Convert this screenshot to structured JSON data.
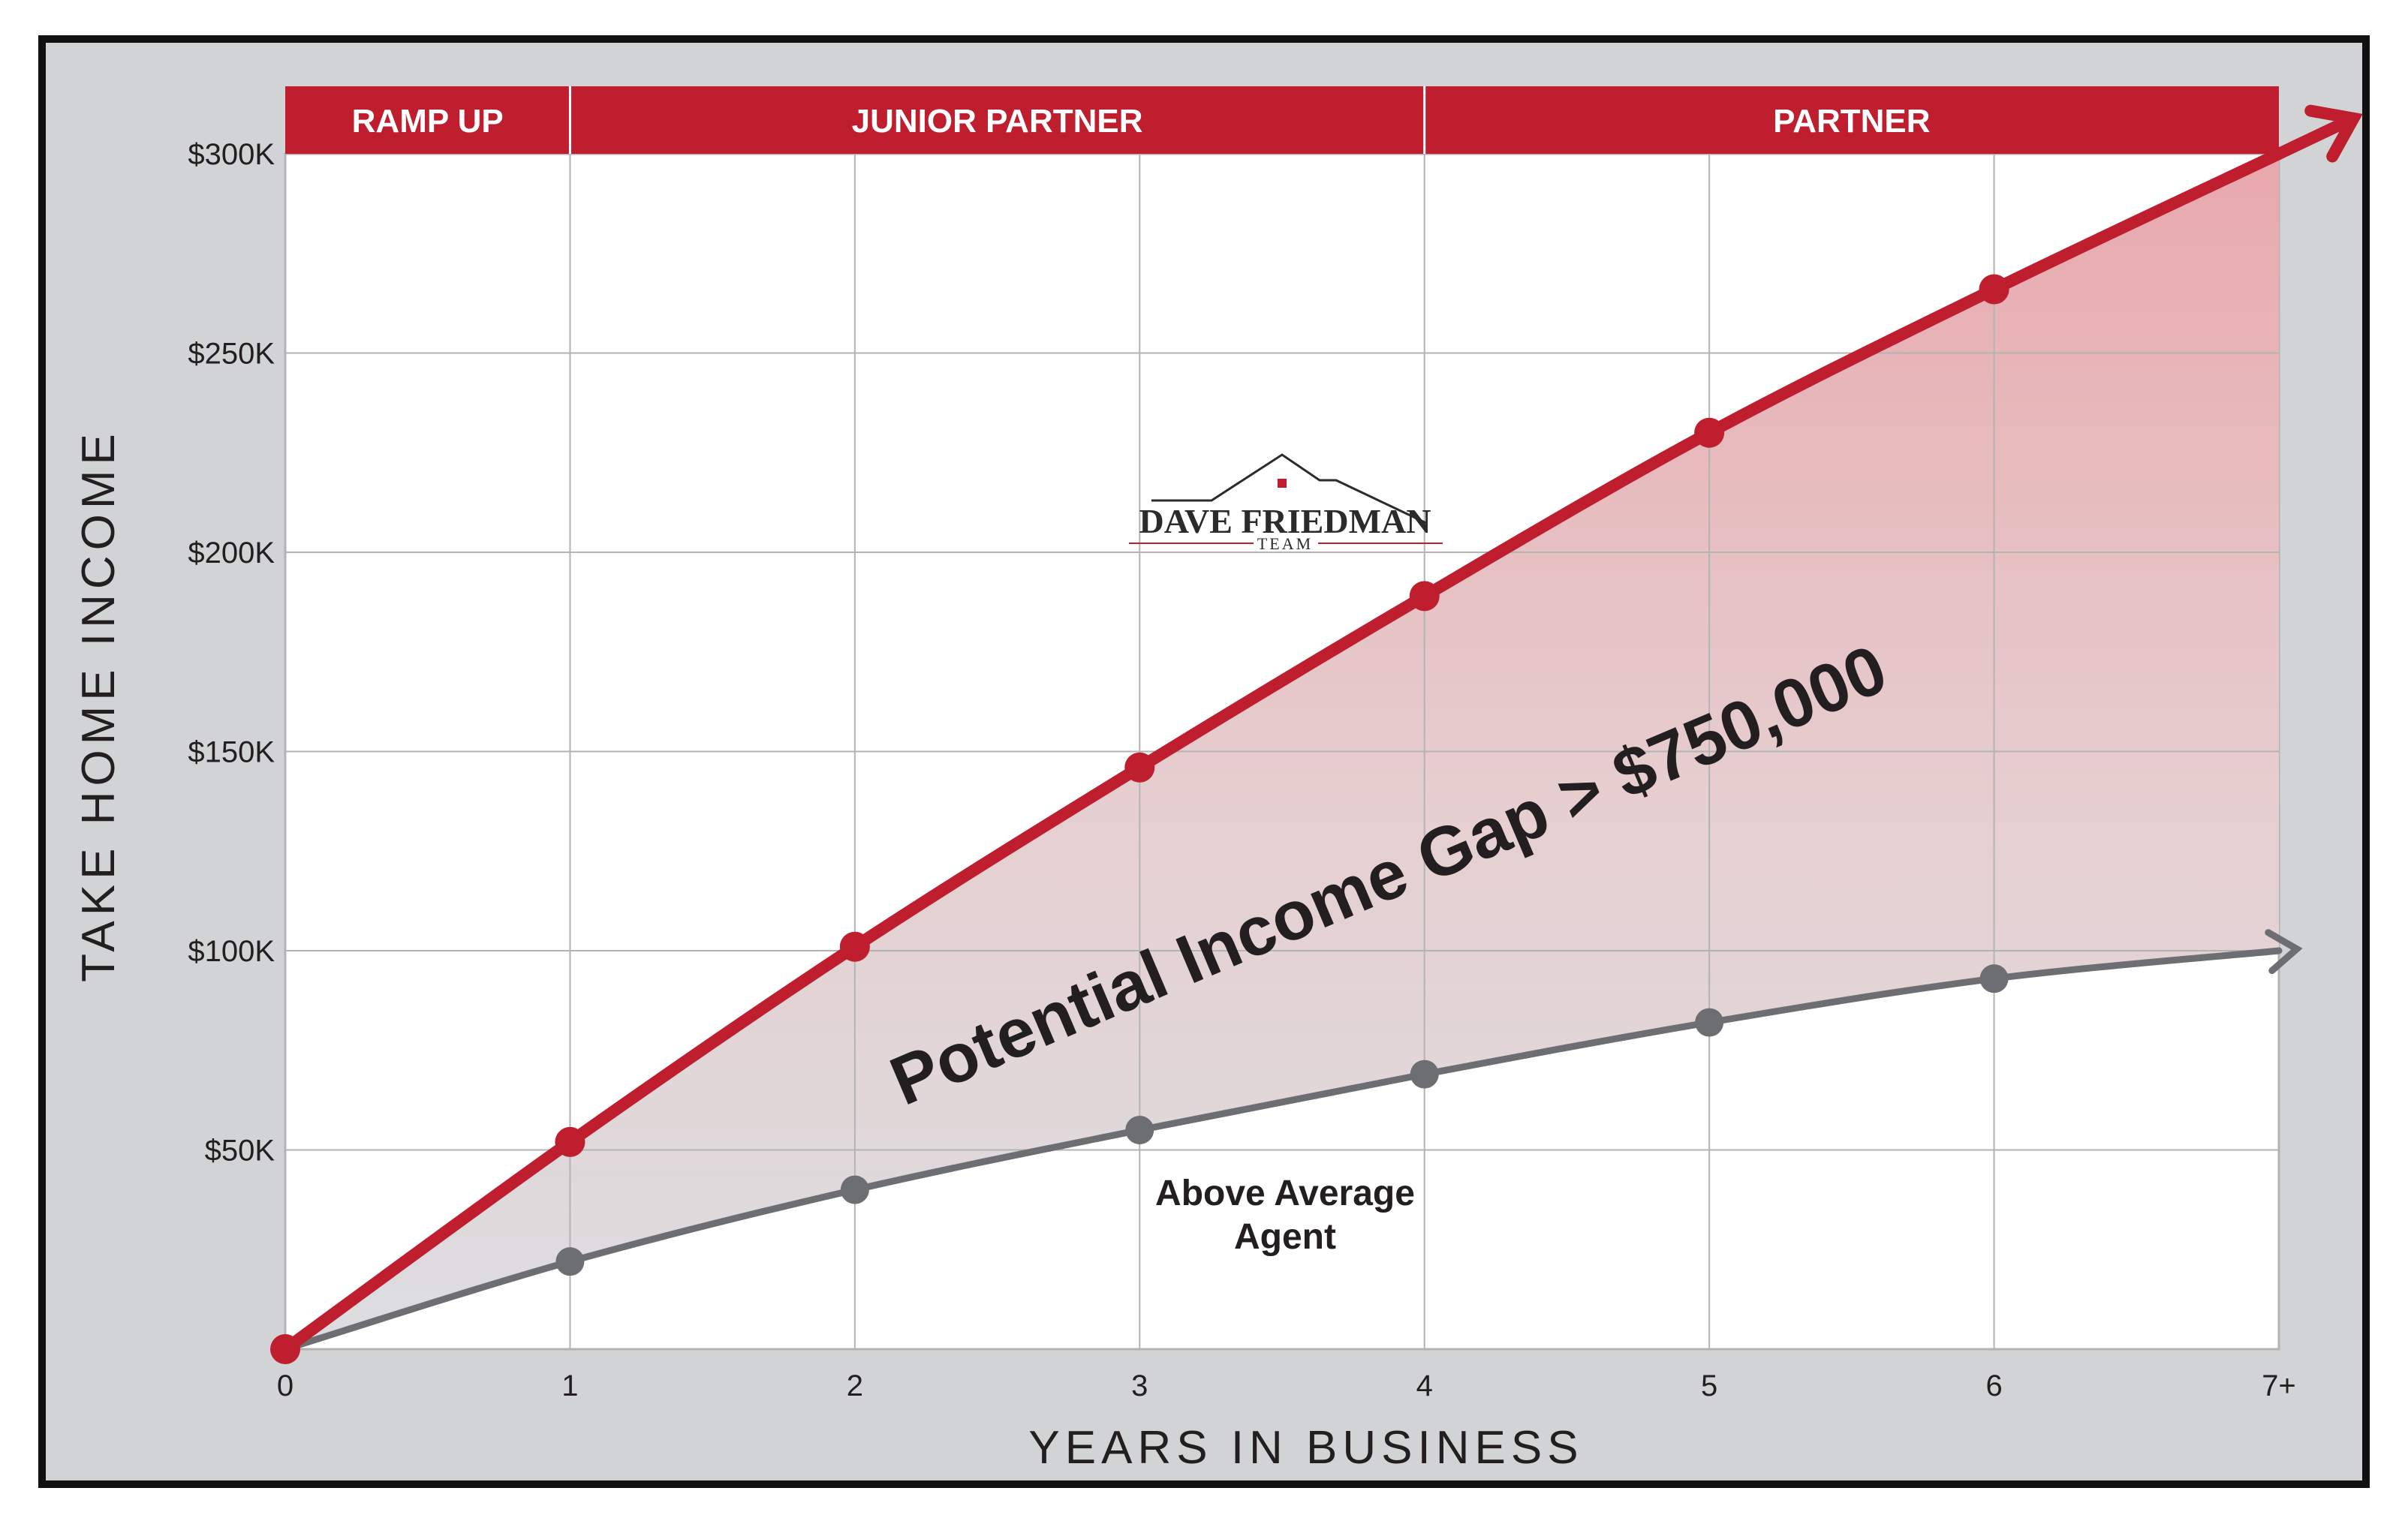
{
  "chart_data": {
    "type": "line",
    "xlabel": "YEARS IN BUSINESS",
    "ylabel": "TAKE HOME INCOME",
    "x_tick_labels": [
      "0",
      "1",
      "2",
      "3",
      "4",
      "5",
      "6",
      "7+"
    ],
    "y_tick_labels": [
      "$50K",
      "$100K",
      "$150K",
      "$200K",
      "$250K",
      "$300K"
    ],
    "y_ticks": [
      50000,
      100000,
      150000,
      200000,
      250000,
      300000
    ],
    "xlim": [
      0,
      7
    ],
    "ylim": [
      0,
      300000
    ],
    "grid": true,
    "phases": [
      {
        "label": "RAMP UP",
        "from": 0,
        "to": 1
      },
      {
        "label": "JUNIOR PARTNER",
        "from": 1,
        "to": 4
      },
      {
        "label": "PARTNER",
        "from": 4,
        "to": 7
      }
    ],
    "series": [
      {
        "x": [
          0,
          1,
          2,
          3,
          4,
          5,
          6
        ],
        "values": [
          0,
          52000,
          101000,
          146000,
          189000,
          230000,
          266000
        ],
        "end_value": 300000,
        "color": "#be1e2d"
      },
      {
        "x": [
          0,
          1,
          2,
          3,
          4,
          5,
          6
        ],
        "values": [
          0,
          22000,
          40000,
          55000,
          69000,
          82000,
          93000
        ],
        "end_value": 100000,
        "color": "#6d6e71"
      }
    ],
    "annotations": {
      "gap": "Potential Income Gap > $750,000",
      "agent_line1": "Above Average",
      "agent_line2": "Agent"
    }
  },
  "logo": {
    "name": "DAVE FRIEDMAN",
    "sub": "TEAM"
  },
  "colors": {
    "frame_bg": "#d1d3d4",
    "border": "#111111",
    "accent_red": "#be1e2d",
    "agent_gray": "#6d6e71",
    "grid": "#b3b3b3"
  }
}
